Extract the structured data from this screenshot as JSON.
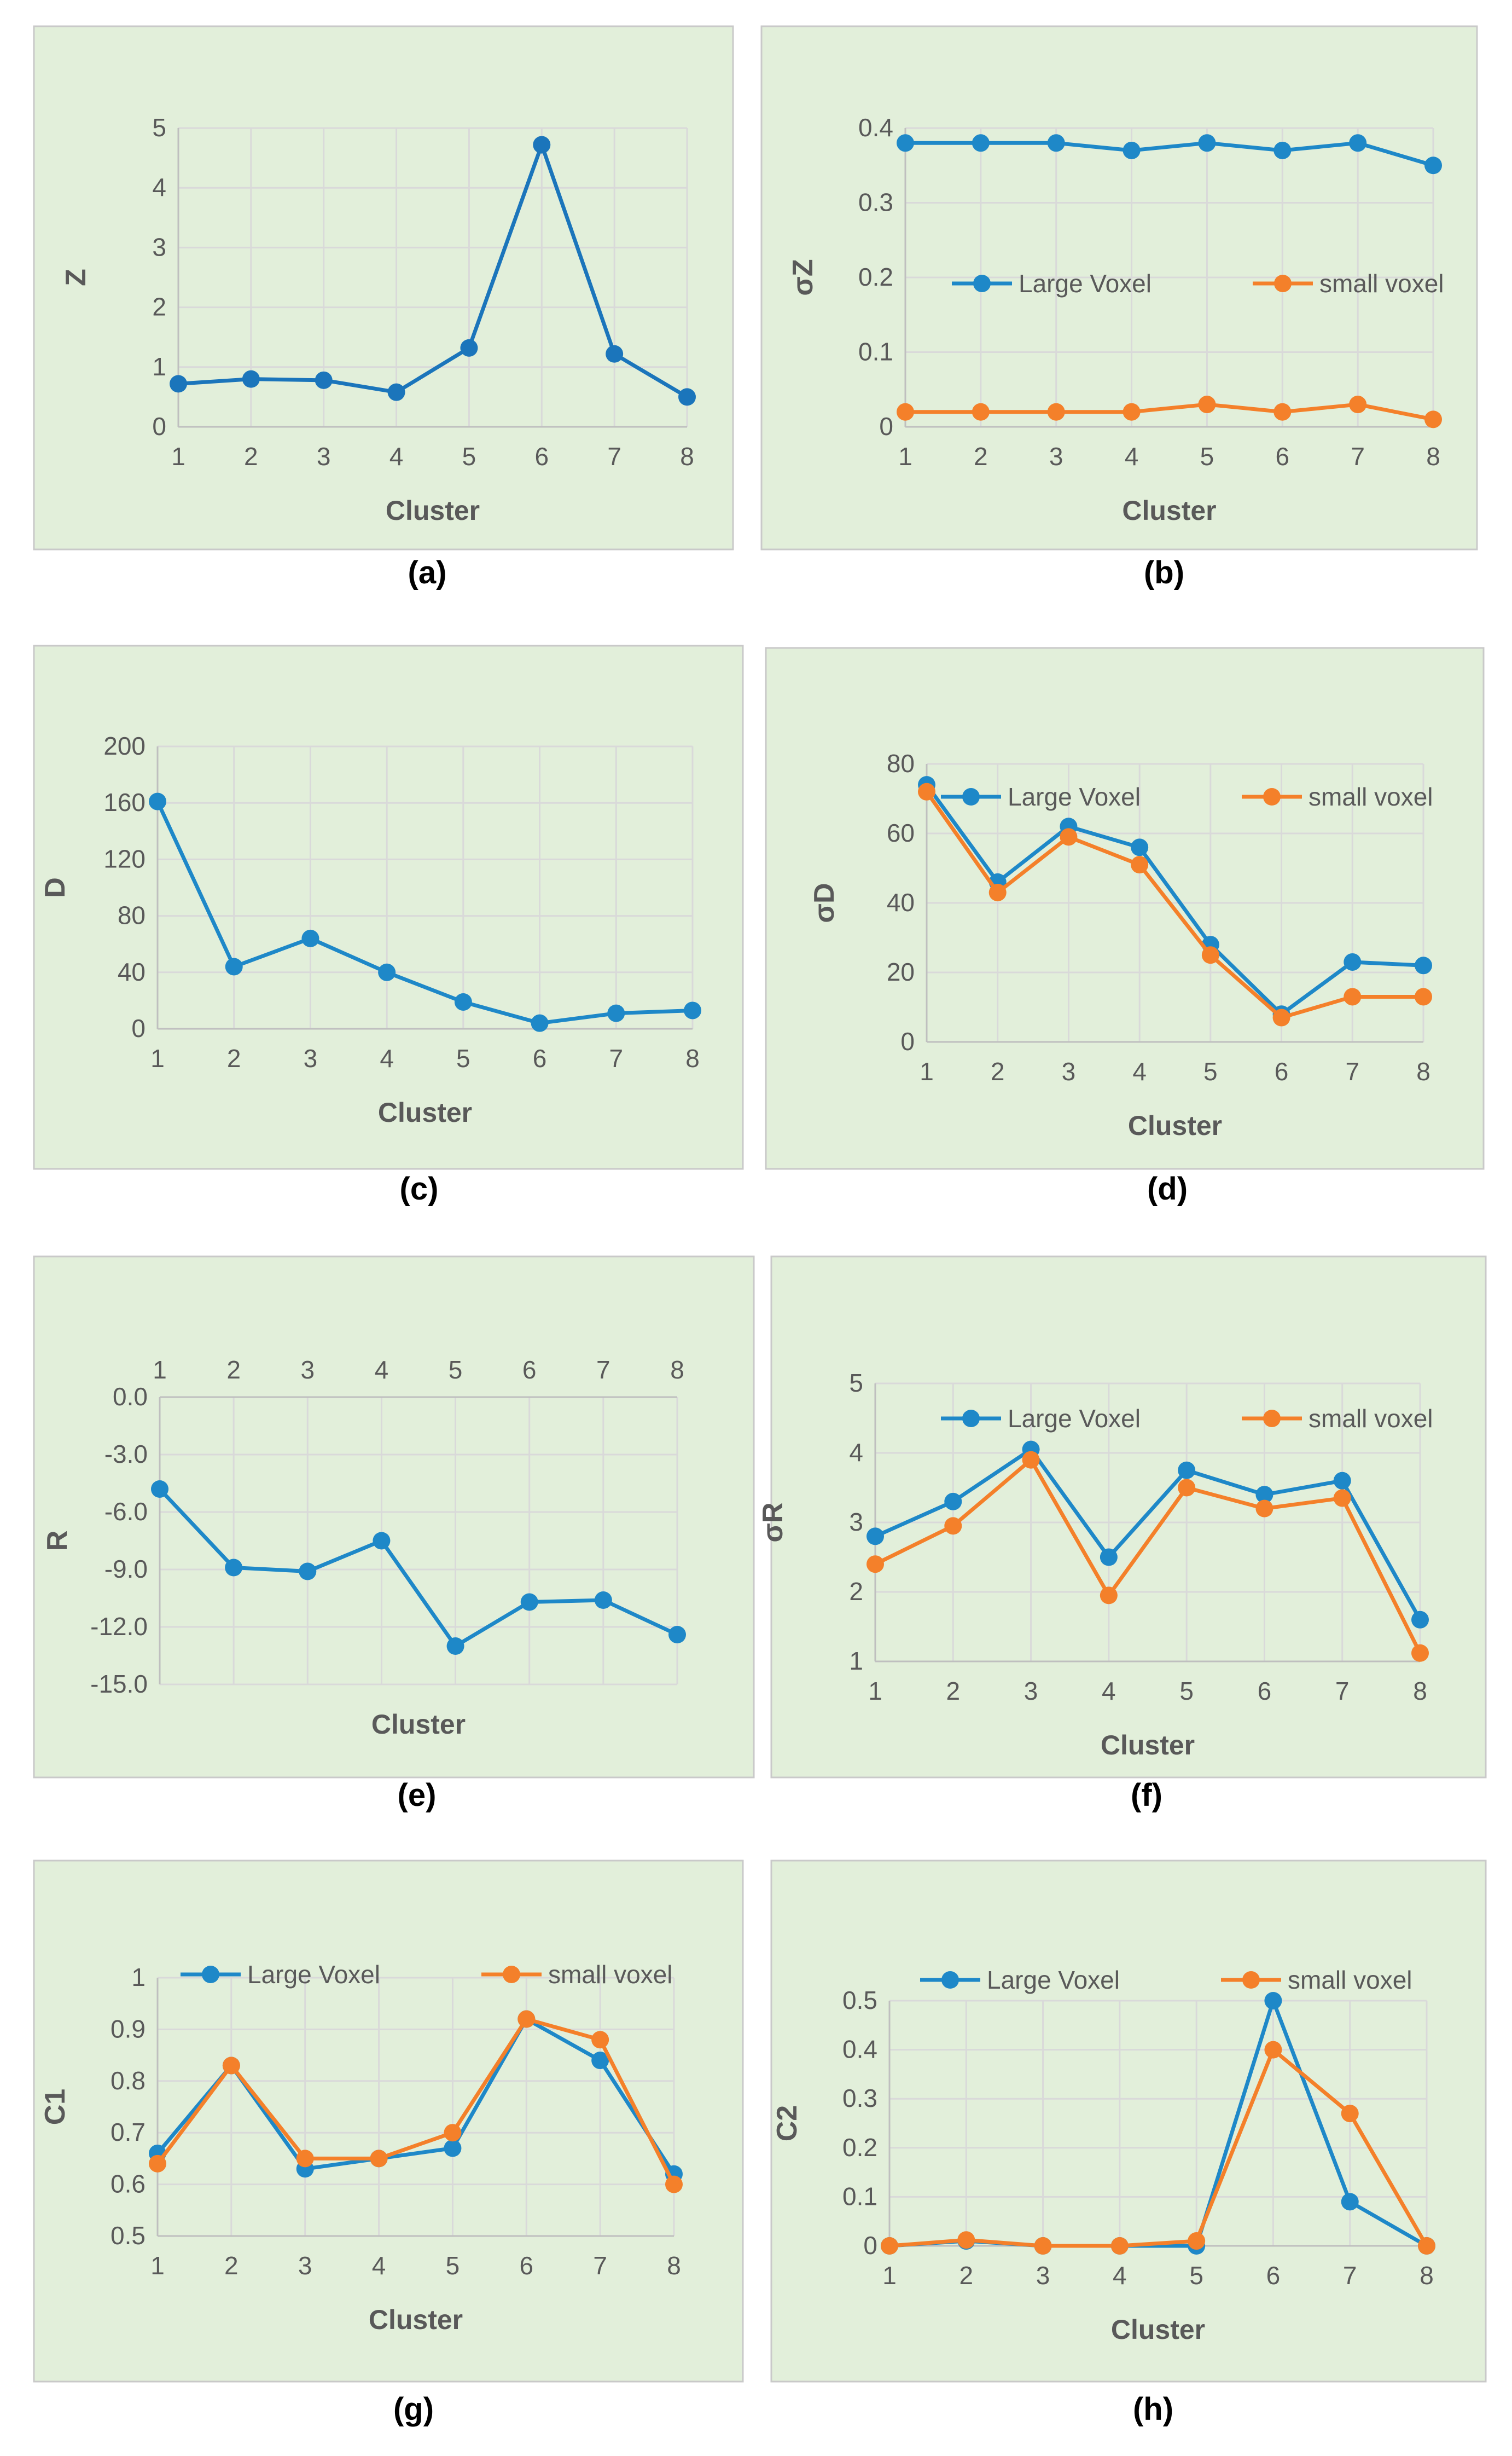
{
  "figure": {
    "panel_labels": [
      "(a)",
      "(b)",
      "(c)",
      "(d)",
      "(e)",
      "(f)",
      "(g)",
      "(h)"
    ]
  },
  "colors": {
    "panel_bg": "#e2efda",
    "panel_border": "#c9c9c9",
    "grid": "#d9d9d9",
    "axis": "#bfbfbf",
    "text": "#595959",
    "label": "#000000",
    "blue": "#1e88c8",
    "dark_blue": "#1b75bb",
    "orange": "#f4802a"
  },
  "chart_data": [
    {
      "id": "a",
      "type": "line",
      "title": "",
      "xlabel": "Cluster",
      "ylabel": "Z",
      "categories": [
        1,
        2,
        3,
        4,
        5,
        6,
        7,
        8
      ],
      "ylim": [
        0,
        5
      ],
      "yticks": [
        0,
        1,
        2,
        3,
        4,
        5
      ],
      "ytick_labels": [
        "0",
        "1",
        "2",
        "3",
        "4",
        "5"
      ],
      "x_axis_position": "bottom",
      "grid": true,
      "legend": "none",
      "series": [
        {
          "name": "Z",
          "color_key": "dark_blue",
          "values": [
            0.72,
            0.8,
            0.78,
            0.58,
            1.32,
            4.72,
            1.22,
            0.5
          ]
        }
      ]
    },
    {
      "id": "b",
      "type": "line",
      "title": "",
      "xlabel": "Cluster",
      "ylabel": "σZ",
      "categories": [
        1,
        2,
        3,
        4,
        5,
        6,
        7,
        8
      ],
      "ylim": [
        0,
        0.4
      ],
      "yticks": [
        0,
        0.1,
        0.2,
        0.3,
        0.4
      ],
      "ytick_labels": [
        "0",
        "0.1",
        "0.2",
        "0.3",
        "0.4"
      ],
      "x_axis_position": "bottom",
      "grid": true,
      "legend": "middle",
      "series": [
        {
          "name": "Large  Voxel",
          "color_key": "blue",
          "values": [
            0.38,
            0.38,
            0.38,
            0.37,
            0.38,
            0.37,
            0.38,
            0.35
          ]
        },
        {
          "name": "small voxel",
          "color_key": "orange",
          "values": [
            0.02,
            0.02,
            0.02,
            0.02,
            0.03,
            0.02,
            0.03,
            0.01
          ]
        }
      ]
    },
    {
      "id": "c",
      "type": "line",
      "title": "",
      "xlabel": "Cluster",
      "ylabel": "D",
      "categories": [
        1,
        2,
        3,
        4,
        5,
        6,
        7,
        8
      ],
      "ylim": [
        0,
        200
      ],
      "yticks": [
        0,
        40,
        80,
        120,
        160,
        200
      ],
      "ytick_labels": [
        "0",
        "40",
        "80",
        "120",
        "160",
        "200"
      ],
      "x_axis_position": "bottom",
      "grid": true,
      "legend": "none",
      "series": [
        {
          "name": "D",
          "color_key": "blue",
          "values": [
            161,
            44,
            64,
            40,
            19,
            4,
            11,
            13
          ]
        }
      ]
    },
    {
      "id": "d",
      "type": "line",
      "title": "",
      "xlabel": "Cluster",
      "ylabel": "σD",
      "categories": [
        1,
        2,
        3,
        4,
        5,
        6,
        7,
        8
      ],
      "ylim": [
        0,
        80
      ],
      "yticks": [
        0,
        20,
        40,
        60,
        80
      ],
      "ytick_labels": [
        "0",
        "20",
        "40",
        "60",
        "80"
      ],
      "x_axis_position": "bottom",
      "grid": true,
      "legend": "top",
      "series": [
        {
          "name": "Large  Voxel",
          "color_key": "blue",
          "values": [
            74,
            46,
            62,
            56,
            28,
            8,
            23,
            22
          ]
        },
        {
          "name": "small voxel",
          "color_key": "orange",
          "values": [
            72,
            43,
            59,
            51,
            25,
            7,
            13,
            13
          ]
        }
      ]
    },
    {
      "id": "e",
      "type": "line",
      "title": "",
      "xlabel": "Cluster",
      "ylabel": "R",
      "categories": [
        1,
        2,
        3,
        4,
        5,
        6,
        7,
        8
      ],
      "ylim": [
        -15,
        0
      ],
      "yticks": [
        0,
        -3,
        -6,
        -9,
        -12,
        -15
      ],
      "ytick_labels": [
        "0.0",
        "-3.0",
        "-6.0",
        "-9.0",
        "-12.0",
        "-15.0"
      ],
      "x_axis_position": "top",
      "grid": true,
      "legend": "none",
      "series": [
        {
          "name": "R",
          "color_key": "blue",
          "values": [
            -4.8,
            -8.9,
            -9.1,
            -7.5,
            -13.0,
            -10.7,
            -10.6,
            -12.4
          ]
        }
      ]
    },
    {
      "id": "f",
      "type": "line",
      "title": "",
      "xlabel": "Cluster",
      "ylabel": "σR",
      "categories": [
        1,
        2,
        3,
        4,
        5,
        6,
        7,
        8
      ],
      "ylim": [
        1,
        5
      ],
      "yticks": [
        1,
        2,
        3,
        4,
        5
      ],
      "ytick_labels": [
        "1",
        "2",
        "3",
        "4",
        "5"
      ],
      "x_axis_position": "bottom",
      "grid": true,
      "legend": "top",
      "series": [
        {
          "name": "Large  Voxel",
          "color_key": "blue",
          "values": [
            2.8,
            3.3,
            4.05,
            2.5,
            3.75,
            3.4,
            3.6,
            1.6
          ]
        },
        {
          "name": "small voxel",
          "color_key": "orange",
          "values": [
            2.4,
            2.95,
            3.9,
            1.95,
            3.5,
            3.2,
            3.35,
            1.12
          ]
        }
      ]
    },
    {
      "id": "g",
      "type": "line",
      "title": "",
      "xlabel": "Cluster",
      "ylabel": "C1",
      "categories": [
        1,
        2,
        3,
        4,
        5,
        6,
        7,
        8
      ],
      "ylim": [
        0.5,
        1
      ],
      "yticks": [
        0.5,
        0.6,
        0.7,
        0.8,
        0.9,
        1
      ],
      "ytick_labels": [
        "0.5",
        "0.6",
        "0.7",
        "0.8",
        "0.9",
        "1"
      ],
      "x_axis_position": "bottom",
      "grid": true,
      "legend": "top",
      "series": [
        {
          "name": "Large  Voxel",
          "color_key": "blue",
          "values": [
            0.66,
            0.83,
            0.63,
            0.65,
            0.67,
            0.92,
            0.84,
            0.62
          ]
        },
        {
          "name": "small voxel",
          "color_key": "orange",
          "values": [
            0.64,
            0.83,
            0.65,
            0.65,
            0.7,
            0.92,
            0.88,
            0.6
          ]
        }
      ]
    },
    {
      "id": "h",
      "type": "line",
      "title": "",
      "xlabel": "Cluster",
      "ylabel": "C2",
      "categories": [
        1,
        2,
        3,
        4,
        5,
        6,
        7,
        8
      ],
      "ylim": [
        0,
        0.5
      ],
      "yticks": [
        0,
        0.1,
        0.2,
        0.3,
        0.4,
        0.5
      ],
      "ytick_labels": [
        "0",
        "0.1",
        "0.2",
        "0.3",
        "0.4",
        "0.5"
      ],
      "x_axis_position": "bottom",
      "grid": true,
      "legend": "top",
      "series": [
        {
          "name": "Large  Voxel",
          "color_key": "blue",
          "values": [
            0,
            0.01,
            0,
            0,
            0,
            0.5,
            0.09,
            0
          ]
        },
        {
          "name": "small voxel",
          "color_key": "orange",
          "values": [
            0,
            0.012,
            0,
            0,
            0.01,
            0.4,
            0.27,
            0
          ]
        }
      ]
    }
  ]
}
